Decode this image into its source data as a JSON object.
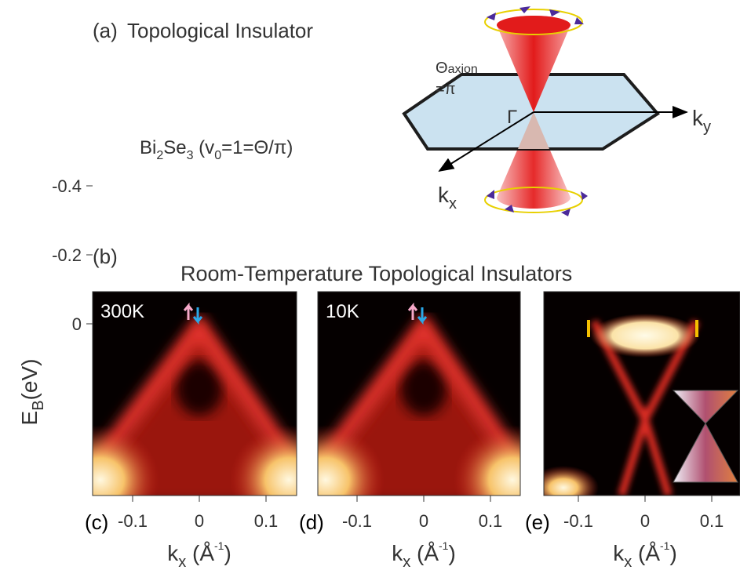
{
  "panel_a": {
    "label": "(a)",
    "title": "Topological Insulator",
    "formula": [
      "Bi",
      "2",
      "Se",
      "3",
      " (v",
      "0",
      "=1=Θ/π)"
    ],
    "theta": [
      "Θ",
      "axion"
    ],
    "theta_value": "=π",
    "gamma": "Γ",
    "ky": [
      "k",
      "y"
    ],
    "kx": [
      "k",
      "x"
    ]
  },
  "panel_b": {
    "label": "(b)",
    "title": "Room-Temperature Topological Insulators",
    "y_axis": [
      "E",
      "B",
      "(eV)"
    ],
    "y_ticks": [
      0,
      -0.2,
      -0.4
    ],
    "plots": [
      {
        "label": "(c)",
        "temperature": "300K"
      },
      {
        "label": "(d)",
        "temperature": "10K"
      },
      {
        "label": "(e)"
      }
    ],
    "x_ticks": [
      -0.1,
      0,
      0.1
    ],
    "x_axis": [
      "k",
      "x",
      " (Å",
      "-1",
      ")"
    ]
  }
}
